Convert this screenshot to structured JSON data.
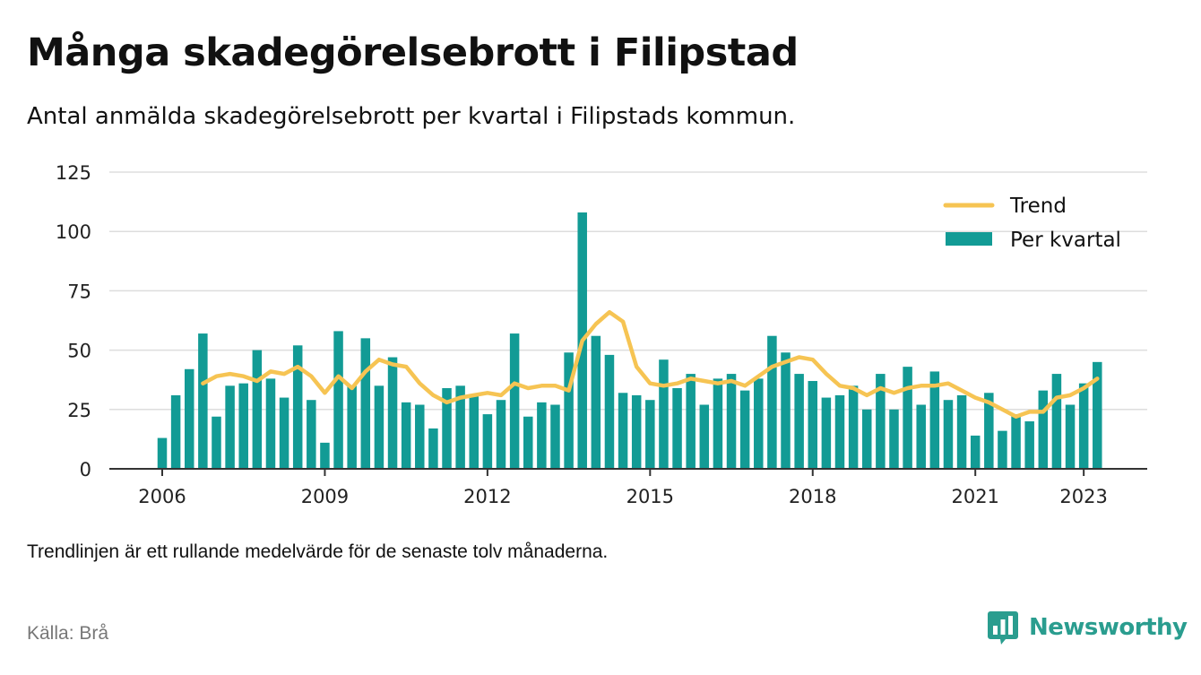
{
  "title": "Många skadegörelsebrott i Filipstad",
  "subtitle": "Antal anmälda skadegörelsebrott per kvartal i Filipstads kommun.",
  "note": "Trendlinjen är ett rullande medelvärde för de senaste tolv månaderna.",
  "source": "Källa: Brå",
  "brand": "Newsworthy",
  "colors": {
    "bar": "#129b95",
    "trend": "#f6c453",
    "grid": "#dddddd",
    "axis": "#333333",
    "brand": "#2a9d8f"
  },
  "chart_data": {
    "type": "bar",
    "xlabel": "",
    "ylabel": "",
    "ylim": [
      0,
      125
    ],
    "yticks": [
      0,
      25,
      50,
      75,
      100,
      125
    ],
    "xticks": [
      "2006",
      "2009",
      "2012",
      "2015",
      "2018",
      "2021",
      "2023"
    ],
    "grid": true,
    "legend": {
      "placement": "top-right",
      "entries": [
        "Trend",
        "Per kvartal"
      ]
    },
    "series": [
      {
        "name": "Per kvartal",
        "type": "bar",
        "values": [
          13,
          31,
          42,
          57,
          22,
          35,
          36,
          50,
          38,
          30,
          52,
          29,
          11,
          58,
          35,
          55,
          35,
          47,
          28,
          27,
          17,
          34,
          35,
          31,
          23,
          29,
          57,
          22,
          28,
          27,
          49,
          108,
          56,
          48,
          32,
          31,
          29,
          46,
          34,
          40,
          27,
          38,
          40,
          33,
          38,
          56,
          49,
          40,
          37,
          30,
          31,
          35,
          25,
          40,
          25,
          43,
          27,
          41,
          29,
          31,
          14,
          32,
          16,
          23,
          20,
          33,
          40,
          27,
          36,
          45
        ]
      },
      {
        "name": "Trend",
        "type": "line",
        "values": [
          null,
          null,
          null,
          36,
          39,
          40,
          39,
          37,
          41,
          40,
          43,
          39,
          32,
          39,
          34,
          41,
          46,
          44,
          43,
          36,
          31,
          28,
          30,
          31,
          32,
          31,
          36,
          34,
          35,
          35,
          33,
          54,
          61,
          66,
          62,
          43,
          36,
          35,
          36,
          38,
          37,
          36,
          37,
          35,
          39,
          43,
          45,
          47,
          46,
          40,
          35,
          34,
          31,
          34,
          32,
          34,
          35,
          35,
          36,
          33,
          30,
          28,
          25,
          22,
          24,
          24,
          30,
          31,
          34,
          38
        ]
      }
    ]
  }
}
